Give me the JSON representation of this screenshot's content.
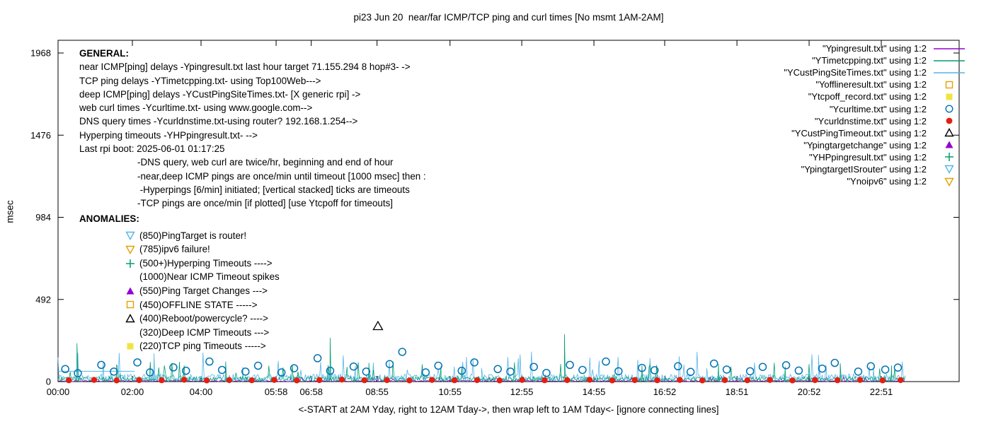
{
  "title": "pi23 Jun 20  near/far ICMP/TCP ping and curl times [No msmt 1AM-2AM]",
  "y_axis": {
    "label": "msec"
  },
  "x_axis": {
    "note": "<-START at 2AM Yday, right to 12AM Tday->, then wrap left to 1AM Tday<- [ignore connecting lines]"
  },
  "legend": [
    {
      "label": "\"Ypingresult.txt\" using 1:2",
      "marker": "line",
      "color": "#9400d3"
    },
    {
      "label": "\"YTimetcpping.txt\" using 1:2",
      "marker": "line",
      "color": "#009e73"
    },
    {
      "label": "\"YCustPingSiteTimes.txt\" using 1:2",
      "marker": "line",
      "color": "#56b4e9"
    },
    {
      "label": "\"Yofflineresult.txt\" using 1:2",
      "marker": "square-open",
      "color": "#e69f00"
    },
    {
      "label": "\"Ytcpoff_record.txt\" using 1:2",
      "marker": "square-filled",
      "color": "#f0e442"
    },
    {
      "label": "\"Ycurltime.txt\" using 1:2",
      "marker": "circle-open",
      "color": "#0072b2"
    },
    {
      "label": "\"Ycurldnstime.txt\" using 1:2",
      "marker": "circle-filled",
      "color": "#e51e10"
    },
    {
      "label": "\"YCustPingTimeout.txt\" using 1:2",
      "marker": "triangle-open",
      "color": "#000000"
    },
    {
      "label": "\"Ypingtargetchange\" using 1:2",
      "marker": "triangle-filled",
      "color": "#9400d3"
    },
    {
      "label": "\"YHPpingresult.txt\" using 1:2",
      "marker": "plus",
      "color": "#009e73"
    },
    {
      "label": "\"YpingtargetISrouter\" using 1:2",
      "marker": "triangle-down-open",
      "color": "#56b4e9"
    },
    {
      "label": "\"Ynoipv6\" using 1:2",
      "marker": "triangle-down-open",
      "color": "#e69f00"
    }
  ],
  "general": {
    "heading": "GENERAL:",
    "lines": [
      "near ICMP[ping] delays -Ypingresult.txt last hour target 71.155.294 8 hop#3- ->",
      "TCP ping delays -YTimetcpping.txt- using Top100Web--->",
      "deep ICMP[ping] delays -YCustPingSiteTimes.txt- [X generic rpi] ->",
      "web curl times -Ycurltime.txt- using www.google.com-->",
      "DNS query times -Ycurldnstime.txt-using router? 192.168.1.254-->",
      "Hyperping timeouts -YHPpingresult.txt- -->",
      "Last rpi boot: 2025-06-01 01:17:25"
    ],
    "sub_lines": [
      "-DNS query, web curl are twice/hr, beginning and end of hour",
      "-near,deep ICMP pings are once/min until timeout [1000 msec] then :",
      " -Hyperpings [6/min] initiated; [vertical stacked] ticks are timeouts",
      "-TCP pings are once/min [if plotted] [use Ytcpoff for timeouts]"
    ]
  },
  "anomalies": {
    "heading": "ANOMALIES:",
    "items": [
      {
        "marker": "triangle-down-open",
        "color": "#56b4e9",
        "text": "(850)PingTarget is router!"
      },
      {
        "marker": "triangle-down-open",
        "color": "#e69f00",
        "text": "(785)ipv6 failure!"
      },
      {
        "marker": "plus",
        "color": "#009e73",
        "text": "(500+)Hyperping Timeouts ---->"
      },
      {
        "marker": "none",
        "color": "",
        "text": "(1000)Near ICMP Timeout spikes"
      },
      {
        "marker": "triangle-filled",
        "color": "#9400d3",
        "text": "(550)Ping Target Changes --->"
      },
      {
        "marker": "square-open",
        "color": "#e69f00",
        "text": "(450)OFFLINE STATE ----->"
      },
      {
        "marker": "triangle-open",
        "color": "#000000",
        "text": "(400)Reboot/powercycle? ---->"
      },
      {
        "marker": "none",
        "color": "",
        "text": "(320)Deep ICMP Timeouts --->"
      },
      {
        "marker": "square-filled",
        "color": "#f0e442",
        "text": "(220)TCP ping Timeouts ----->"
      }
    ]
  },
  "chart_data": {
    "type": "line",
    "title": "pi23 Jun 20  near/far ICMP/TCP ping and curl times [No msmt 1AM-2AM]",
    "xlabel": "<-START at 2AM Yday, right to 12AM Tday->, then wrap left to 1AM Tday<- [ignore connecting lines]",
    "ylabel": "msec",
    "ylim": [
      0,
      2045
    ],
    "yticks": [
      0,
      492,
      984,
      1476,
      1968
    ],
    "grid": false,
    "legend_position": "top-right",
    "xticks": [
      {
        "label": "00:00",
        "t": 0.0
      },
      {
        "label": "02:00",
        "t": 0.0825
      },
      {
        "label": "04:00",
        "t": 0.1587
      },
      {
        "label": "05:58",
        "t": 0.242
      },
      {
        "label": "06:58",
        "t": 0.281
      },
      {
        "label": "08:55",
        "t": 0.354
      },
      {
        "label": "10:55",
        "t": 0.435
      },
      {
        "label": "12:55",
        "t": 0.5146
      },
      {
        "label": "14:55",
        "t": 0.5947
      },
      {
        "label": "16:52",
        "t": 0.6732
      },
      {
        "label": "18:51",
        "t": 0.7534
      },
      {
        "label": "20:52",
        "t": 0.8335
      },
      {
        "label": "22:51",
        "t": 0.9136
      }
    ],
    "data_extent": 0.94,
    "noise_series": [
      {
        "name": "Ypingresult.txt",
        "color": "#9400d3",
        "seed": 101,
        "count": 700,
        "max": 8
      },
      {
        "name": "YCustPingSiteTimes.txt",
        "color": "#56b4e9",
        "seed": 77,
        "count": 900,
        "max": 45,
        "spikes": [
          [
            0.105,
            78
          ],
          [
            0.205,
            88
          ],
          [
            0.33,
            95
          ],
          [
            0.47,
            82
          ],
          [
            0.6,
            90
          ],
          [
            0.72,
            80
          ],
          [
            0.845,
            92
          ],
          [
            0.905,
            85
          ]
        ]
      },
      {
        "name": "YTimetcpping.txt",
        "color": "#009e73",
        "seed": 31,
        "count": 900,
        "max": 30,
        "spikes": [
          [
            0.021,
            230
          ],
          [
            0.065,
            100
          ],
          [
            0.186,
            120
          ],
          [
            0.302,
            262
          ],
          [
            0.345,
            112
          ],
          [
            0.425,
            92
          ],
          [
            0.562,
            285
          ],
          [
            0.648,
            96
          ],
          [
            0.733,
            105
          ],
          [
            0.807,
            90
          ],
          [
            0.868,
            110
          ],
          [
            0.925,
            96
          ]
        ]
      }
    ],
    "flat_segments": [
      {
        "name": "YCustPingSiteTimes-flat",
        "color": "#56b4e9",
        "t0": 0.0,
        "t1": 0.085,
        "value": 62
      }
    ],
    "point_series": [
      {
        "name": "Ycurltime.txt",
        "marker": "circle-open",
        "color": "#0072b2",
        "points": [
          [
            0.008,
            75
          ],
          [
            0.022,
            50
          ],
          [
            0.048,
            100
          ],
          [
            0.062,
            60
          ],
          [
            0.088,
            115
          ],
          [
            0.102,
            55
          ],
          [
            0.128,
            85
          ],
          [
            0.142,
            65
          ],
          [
            0.168,
            120
          ],
          [
            0.182,
            70
          ],
          [
            0.208,
            60
          ],
          [
            0.222,
            95
          ],
          [
            0.248,
            55
          ],
          [
            0.262,
            80
          ],
          [
            0.288,
            140
          ],
          [
            0.302,
            65
          ],
          [
            0.328,
            90
          ],
          [
            0.342,
            60
          ],
          [
            0.368,
            105
          ],
          [
            0.382,
            178
          ],
          [
            0.408,
            55
          ],
          [
            0.422,
            95
          ],
          [
            0.448,
            65
          ],
          [
            0.462,
            115
          ],
          [
            0.488,
            75
          ],
          [
            0.502,
            60
          ],
          [
            0.528,
            88
          ],
          [
            0.542,
            52
          ],
          [
            0.568,
            100
          ],
          [
            0.582,
            70
          ],
          [
            0.608,
            120
          ],
          [
            0.622,
            62
          ],
          [
            0.648,
            82
          ],
          [
            0.662,
            68
          ],
          [
            0.688,
            92
          ],
          [
            0.702,
            58
          ],
          [
            0.728,
            108
          ],
          [
            0.742,
            72
          ],
          [
            0.768,
            62
          ],
          [
            0.782,
            88
          ],
          [
            0.808,
            98
          ],
          [
            0.822,
            66
          ],
          [
            0.848,
            78
          ],
          [
            0.862,
            112
          ],
          [
            0.888,
            60
          ],
          [
            0.902,
            92
          ],
          [
            0.918,
            72
          ],
          [
            0.932,
            84
          ]
        ]
      },
      {
        "name": "Ycurldnstime.txt",
        "marker": "circle-filled",
        "color": "#e51e10",
        "points": [
          [
            0.012,
            8
          ],
          [
            0.04,
            10
          ],
          [
            0.065,
            7
          ],
          [
            0.09,
            9
          ],
          [
            0.115,
            8
          ],
          [
            0.14,
            11
          ],
          [
            0.165,
            7
          ],
          [
            0.19,
            9
          ],
          [
            0.215,
            8
          ],
          [
            0.24,
            10
          ],
          [
            0.265,
            7
          ],
          [
            0.29,
            9
          ],
          [
            0.315,
            12
          ],
          [
            0.34,
            8
          ],
          [
            0.365,
            9
          ],
          [
            0.39,
            7
          ],
          [
            0.415,
            10
          ],
          [
            0.44,
            8
          ],
          [
            0.465,
            9
          ],
          [
            0.49,
            7
          ],
          [
            0.515,
            10
          ],
          [
            0.54,
            8
          ],
          [
            0.565,
            9
          ],
          [
            0.59,
            11
          ],
          [
            0.615,
            7
          ],
          [
            0.64,
            9
          ],
          [
            0.665,
            8
          ],
          [
            0.69,
            10
          ],
          [
            0.715,
            7
          ],
          [
            0.74,
            9
          ],
          [
            0.765,
            8
          ],
          [
            0.79,
            10
          ],
          [
            0.815,
            7
          ],
          [
            0.84,
            9
          ],
          [
            0.865,
            8
          ],
          [
            0.89,
            10
          ],
          [
            0.915,
            7
          ],
          [
            0.935,
            9
          ]
        ]
      },
      {
        "name": "YCustPingTimeout.txt",
        "marker": "triangle-open",
        "color": "#000000",
        "points": [
          [
            0.355,
            330
          ]
        ]
      }
    ]
  }
}
